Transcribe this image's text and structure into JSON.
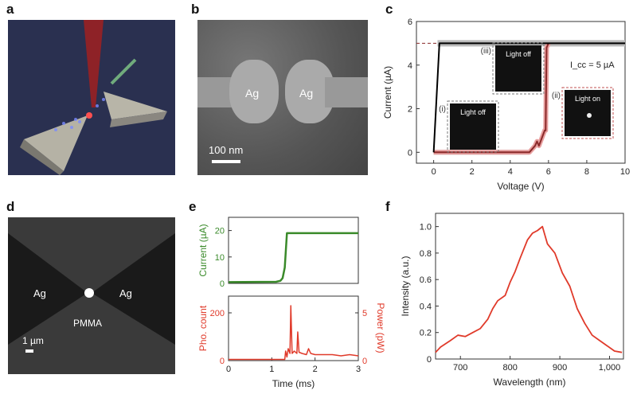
{
  "panels": {
    "a": "a",
    "b": "b",
    "c": "c",
    "d": "d",
    "e": "e",
    "f": "f"
  },
  "panel_b": {
    "left": "Ag",
    "right": "Ag",
    "scale": "100 nm"
  },
  "panel_d": {
    "left": "Ag",
    "right": "Ag",
    "center": "PMMA",
    "scale": "1 µm"
  },
  "colors": {
    "green": "#3a8a2a",
    "red": "#e03a2a",
    "darkred": "#8a2a2a",
    "gray": "#999999"
  },
  "chart_data": [
    {
      "panel": "c",
      "type": "line",
      "xlabel": "Voltage (V)",
      "ylabel": "Current (µA)",
      "xlim": [
        -0.9,
        10
      ],
      "ylim": [
        -0.5,
        6
      ],
      "xticks": [
        0,
        2,
        4,
        6,
        8,
        10
      ],
      "yticks": [
        0,
        2,
        4,
        6
      ],
      "annotation": "I_cc = 5 µA",
      "icc_label": "I",
      "icc_sub": "cc",
      "icc_rest": " = 5 µA",
      "insets": [
        {
          "tag": "(i)",
          "text": "Light off"
        },
        {
          "tag": "(iii)",
          "text": "Light off"
        },
        {
          "tag": "(ii)",
          "text": "Light on"
        }
      ],
      "series": [
        {
          "x": [
            0,
            5,
            5.3,
            5.4,
            5.5,
            5.8,
            5.85,
            5.9,
            6
          ],
          "y": [
            0,
            0,
            0.3,
            0.5,
            0.3,
            1,
            1,
            4.8,
            5
          ],
          "color": "darkred"
        },
        {
          "x": [
            10,
            0.3,
            0,
            0
          ],
          "y": [
            5,
            5,
            0,
            0
          ],
          "color": "black"
        }
      ]
    },
    {
      "panel": "e-top",
      "type": "line",
      "ylabel": "Current (µA)",
      "xlim": [
        0,
        3
      ],
      "ylim": [
        0,
        25
      ],
      "yticks": [
        0,
        10,
        20
      ],
      "x": [
        0,
        1.1,
        1.2,
        1.25,
        1.3,
        1.35,
        3
      ],
      "y": [
        0.5,
        0.6,
        1,
        2,
        6,
        19,
        19
      ]
    },
    {
      "panel": "e-bottom",
      "type": "line",
      "xlabel": "Time (ms)",
      "ylabel": "Pho. count",
      "y2label": "Power (pW)",
      "xlim": [
        0,
        3
      ],
      "ylim": [
        0,
        270
      ],
      "yticks": [
        0,
        200
      ],
      "y2ticks": [
        0,
        5
      ],
      "xticks": [
        0,
        1,
        2,
        3
      ],
      "x": [
        0,
        1.3,
        1.32,
        1.35,
        1.38,
        1.42,
        1.44,
        1.47,
        1.52,
        1.58,
        1.6,
        1.63,
        1.7,
        1.8,
        1.85,
        1.9,
        2,
        2.2,
        2.4,
        2.6,
        2.8,
        3
      ],
      "y": [
        5,
        5,
        40,
        15,
        50,
        30,
        230,
        30,
        40,
        30,
        120,
        35,
        30,
        25,
        50,
        30,
        25,
        25,
        25,
        20,
        25,
        20
      ]
    },
    {
      "panel": "f",
      "type": "line",
      "xlabel": "Wavelength (nm)",
      "ylabel": "Intensity (a.u.)",
      "xlim": [
        650,
        1028
      ],
      "ylim": [
        0,
        1.1
      ],
      "xticks": [
        700,
        800,
        900,
        1000
      ],
      "xticklabels": [
        "700",
        "800",
        "900",
        "1,000"
      ],
      "yticks": [
        0,
        0.2,
        0.4,
        0.6,
        0.8,
        1.0
      ],
      "yticklabels": [
        "0",
        "0.2",
        "0.4",
        "0.6",
        "0.8",
        "1.0"
      ],
      "x": [
        650,
        660,
        680,
        695,
        710,
        725,
        740,
        755,
        765,
        775,
        790,
        800,
        810,
        820,
        835,
        845,
        855,
        865,
        875,
        890,
        905,
        920,
        935,
        950,
        965,
        980,
        995,
        1010,
        1025
      ],
      "y": [
        0.05,
        0.09,
        0.14,
        0.18,
        0.17,
        0.2,
        0.23,
        0.3,
        0.38,
        0.44,
        0.48,
        0.58,
        0.66,
        0.76,
        0.9,
        0.95,
        0.97,
        1.0,
        0.87,
        0.8,
        0.65,
        0.55,
        0.38,
        0.27,
        0.18,
        0.14,
        0.1,
        0.06,
        0.05
      ]
    }
  ]
}
